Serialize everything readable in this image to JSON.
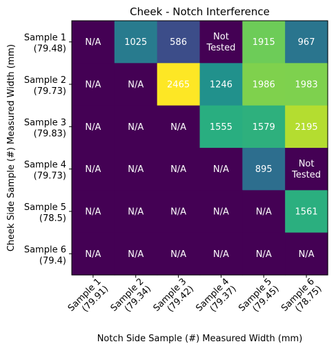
{
  "chart_data": {
    "type": "heatmap",
    "title": "Cheek - Notch Interference",
    "xlabel": "Notch Side Sample (#) Measured Width (mm)",
    "ylabel": "Cheek Side Sample (#) Measured Width (mm)",
    "x_categories": [
      {
        "line1": "Sample 1",
        "line2": "(79.91)"
      },
      {
        "line1": "Sample 2",
        "line2": "(79.34)"
      },
      {
        "line1": "Sample 3",
        "line2": "(79.42)"
      },
      {
        "line1": "Sample 4",
        "line2": "(79.37)"
      },
      {
        "line1": "Sample 5",
        "line2": "(79.45)"
      },
      {
        "line1": "Sample 6",
        "line2": "(78.75)"
      }
    ],
    "y_categories": [
      {
        "line1": "Sample 1",
        "line2": "(79.48)"
      },
      {
        "line1": "Sample 2",
        "line2": "(79.73)"
      },
      {
        "line1": "Sample 3",
        "line2": "(79.83)"
      },
      {
        "line1": "Sample 4",
        "line2": "(79.73)"
      },
      {
        "line1": "Sample 5",
        "line2": "(78.5)"
      },
      {
        "line1": "Sample 6",
        "line2": "(79.4)"
      }
    ],
    "values": [
      [
        null,
        1025,
        586,
        null,
        1915,
        967
      ],
      [
        null,
        null,
        2465,
        1246,
        1986,
        1983
      ],
      [
        null,
        null,
        null,
        1555,
        1579,
        2195
      ],
      [
        null,
        null,
        null,
        null,
        895,
        null
      ],
      [
        null,
        null,
        null,
        null,
        null,
        1561
      ],
      [
        null,
        null,
        null,
        null,
        null,
        null
      ]
    ],
    "cell_labels": [
      [
        "N/A",
        "1025",
        "586",
        "Not\nTested",
        "1915",
        "967"
      ],
      [
        "N/A",
        "N/A",
        "2465",
        "1246",
        "1986",
        "1983"
      ],
      [
        "N/A",
        "N/A",
        "N/A",
        "1555",
        "1579",
        "2195"
      ],
      [
        "N/A",
        "N/A",
        "N/A",
        "N/A",
        "895",
        "Not\nTested"
      ],
      [
        "N/A",
        "N/A",
        "N/A",
        "N/A",
        "N/A",
        "1561"
      ],
      [
        "N/A",
        "N/A",
        "N/A",
        "N/A",
        "N/A",
        "N/A"
      ]
    ],
    "colormap": "viridis",
    "value_range": [
      0,
      2465
    ],
    "missing_color": "#440154",
    "label_color": "#ffffff"
  }
}
